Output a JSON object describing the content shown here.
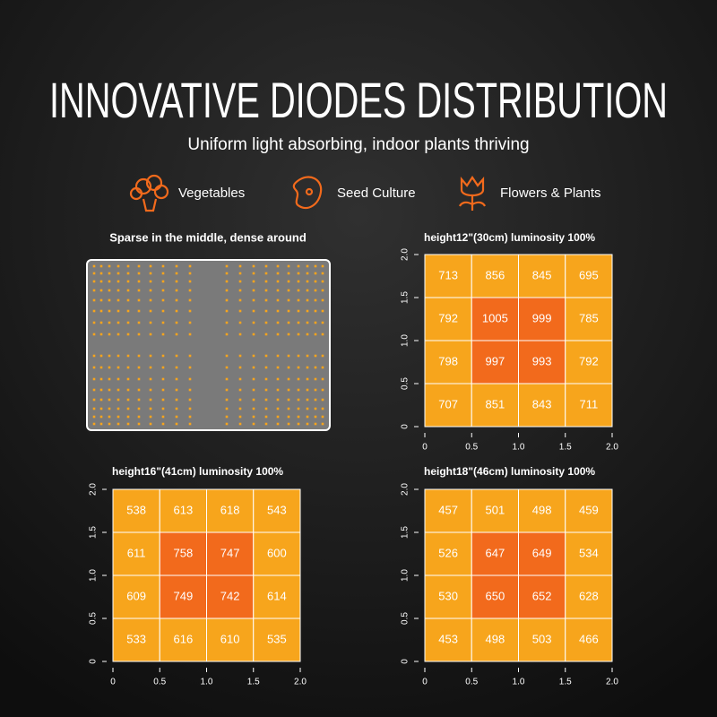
{
  "header": {
    "title": "INNOVATIVE DIODES DISTRIBUTION",
    "subtitle": "Uniform light absorbing, indoor plants thriving"
  },
  "features": [
    "Vegetables",
    "Seed Culture",
    "Flowers & Plants"
  ],
  "diode_panel": {
    "title": "Sparse in the middle, dense around"
  },
  "heatmaps": [
    {
      "title": "height12\"(30cm)  luminosity 100%",
      "xlim": [
        0,
        2
      ],
      "ylim": [
        0,
        2
      ],
      "xticks": [
        0,
        0.5,
        {
          "value": 1,
          "label": "1.0"
        },
        1.5,
        {
          "value": 2,
          "label": "2.0"
        }
      ],
      "yticks": [
        0,
        0.5,
        {
          "value": 1,
          "label": "1.0"
        },
        1.5,
        {
          "value": 2,
          "label": "2.0"
        }
      ],
      "rows": [
        [
          713,
          856,
          845,
          695
        ],
        [
          792,
          1005,
          999,
          785
        ],
        [
          798,
          997,
          993,
          792
        ],
        [
          707,
          851,
          843,
          711
        ]
      ],
      "cell_colors": [
        [
          "#f7a51c",
          "#f7a51c",
          "#f7a51c",
          "#f7a51c"
        ],
        [
          "#f7a51c",
          "#f26a1c",
          "#f26a1c",
          "#f7a51c"
        ],
        [
          "#f7a51c",
          "#f26a1c",
          "#f26a1c",
          "#f7a51c"
        ],
        [
          "#f7a51c",
          "#f7a51c",
          "#f7a51c",
          "#f7a51c"
        ]
      ]
    },
    {
      "title": "height16\"(41cm)  luminosity 100%",
      "xlim": [
        0,
        2
      ],
      "ylim": [
        0,
        2
      ],
      "xticks": [
        0,
        0.5,
        {
          "value": 1,
          "label": "1.0"
        },
        1.5,
        {
          "value": 2,
          "label": "2.0"
        }
      ],
      "yticks": [
        0,
        0.5,
        {
          "value": 1,
          "label": "1.0"
        },
        1.5,
        {
          "value": 2,
          "label": "2.0"
        }
      ],
      "rows": [
        [
          538,
          613,
          618,
          543
        ],
        [
          611,
          758,
          747,
          600
        ],
        [
          609,
          749,
          742,
          614
        ],
        [
          533,
          616,
          610,
          535
        ]
      ],
      "cell_colors": [
        [
          "#f7a51c",
          "#f7a51c",
          "#f7a51c",
          "#f7a51c"
        ],
        [
          "#f7a51c",
          "#f26a1c",
          "#f26a1c",
          "#f7a51c"
        ],
        [
          "#f7a51c",
          "#f26a1c",
          "#f26a1c",
          "#f7a51c"
        ],
        [
          "#f7a51c",
          "#f7a51c",
          "#f7a51c",
          "#f7a51c"
        ]
      ]
    },
    {
      "title": "height18\"(46cm)  luminosity 100%",
      "xlim": [
        0,
        2
      ],
      "ylim": [
        0,
        2
      ],
      "xticks": [
        0,
        0.5,
        {
          "value": 1,
          "label": "1.0"
        },
        1.5,
        {
          "value": 2,
          "label": "2.0"
        }
      ],
      "yticks": [
        0,
        0.5,
        {
          "value": 1,
          "label": "1.0"
        },
        1.5,
        {
          "value": 2,
          "label": "2.0"
        }
      ],
      "rows": [
        [
          457,
          501,
          498,
          459
        ],
        [
          526,
          647,
          649,
          534
        ],
        [
          530,
          650,
          652,
          628
        ],
        [
          453,
          498,
          503,
          466
        ]
      ],
      "cell_colors": [
        [
          "#f7a51c",
          "#f7a51c",
          "#f7a51c",
          "#f7a51c"
        ],
        [
          "#f7a51c",
          "#f26a1c",
          "#f26a1c",
          "#f7a51c"
        ],
        [
          "#f7a51c",
          "#f26a1c",
          "#f26a1c",
          "#f7a51c"
        ],
        [
          "#f7a51c",
          "#f7a51c",
          "#f7a51c",
          "#f7a51c"
        ]
      ]
    }
  ]
}
